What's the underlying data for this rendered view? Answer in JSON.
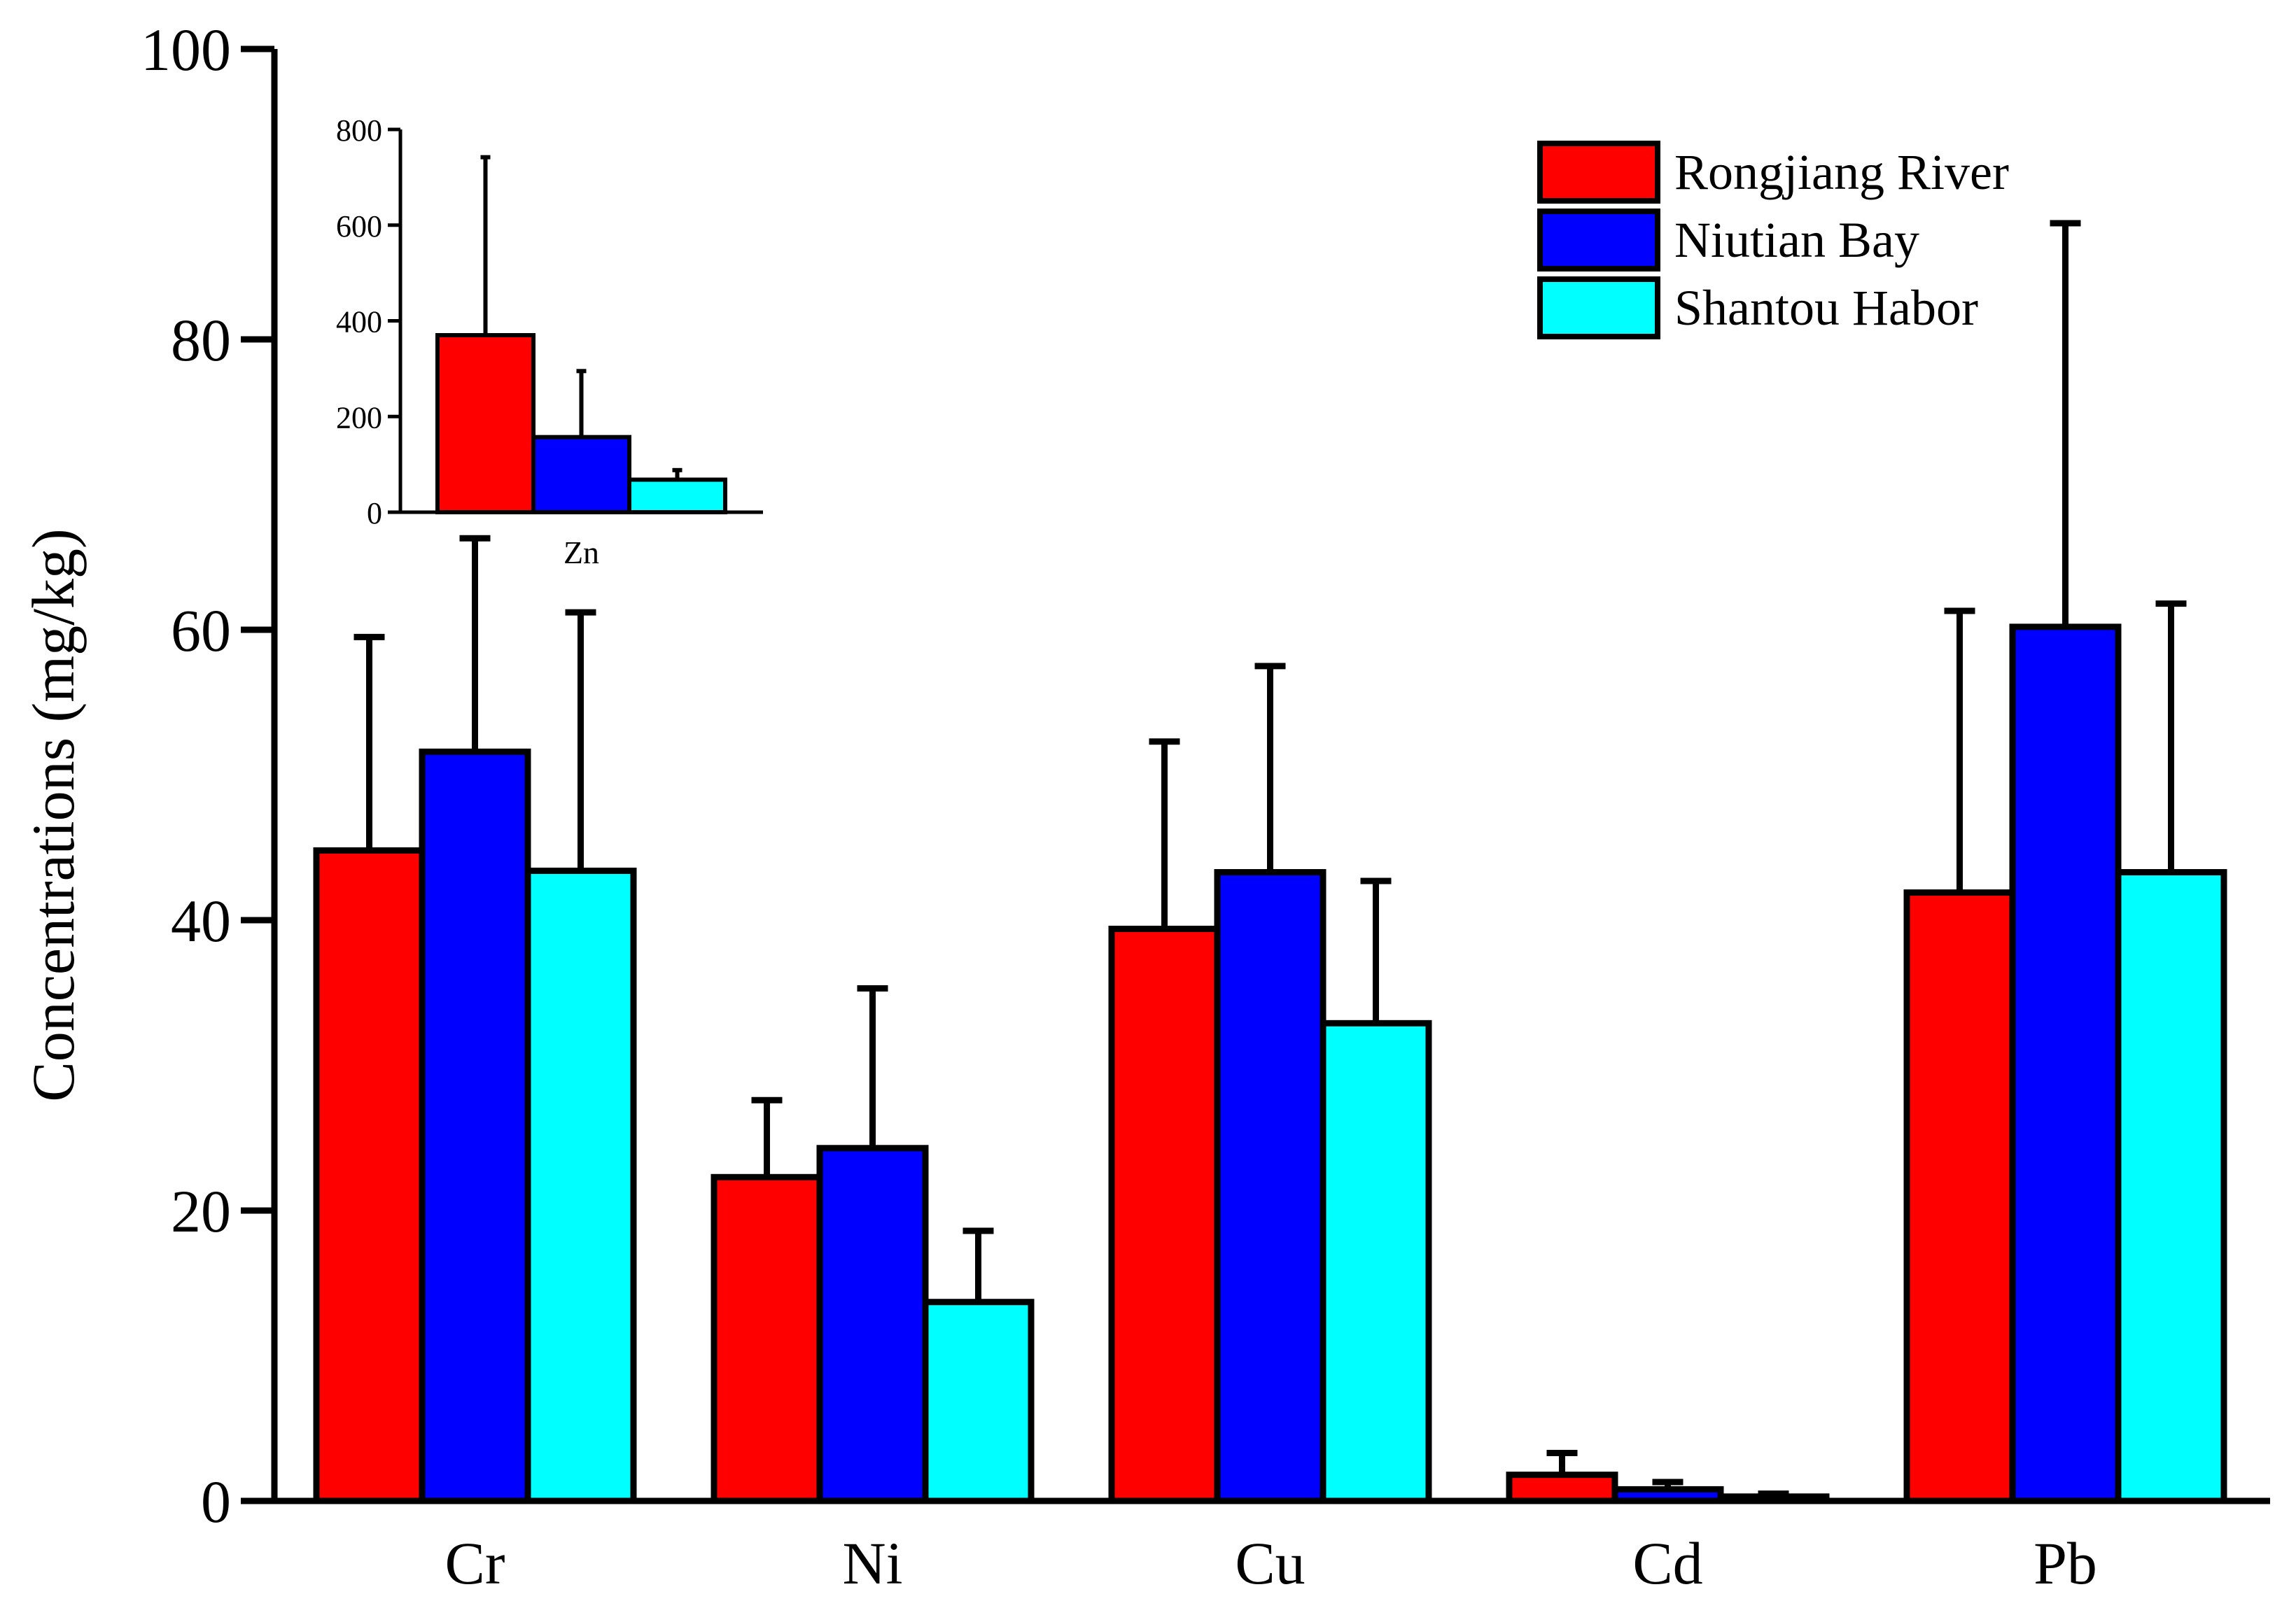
{
  "chart_data": [
    {
      "type": "bar",
      "role": "main",
      "title": "",
      "xlabel": "",
      "ylabel": "Concentrations (mg/kg)",
      "categories": [
        "Cr",
        "Ni",
        "Cu",
        "Cd",
        "Pb"
      ],
      "ylim": [
        0,
        100
      ],
      "yticks": [
        0,
        20,
        40,
        60,
        80,
        100
      ],
      "grid": false,
      "legend_position": "top-right",
      "series": [
        {
          "name": "Rongjiang River",
          "color": "#ff0000",
          "values": [
            44.8,
            22.3,
            39.4,
            1.8,
            41.9
          ],
          "errors": [
            14.7,
            5.3,
            12.9,
            1.5,
            19.4
          ]
        },
        {
          "name": "Niutian Bay",
          "color": "#0000ff",
          "values": [
            51.6,
            24.3,
            43.3,
            0.8,
            60.2
          ],
          "errors": [
            14.7,
            11.0,
            14.2,
            0.5,
            27.8
          ]
        },
        {
          "name": "Shantou Habor",
          "color": "#00ffff",
          "values": [
            43.4,
            13.7,
            32.9,
            0.3,
            43.3
          ],
          "errors": [
            17.8,
            4.9,
            9.8,
            0.2,
            18.5
          ]
        }
      ]
    },
    {
      "type": "bar",
      "role": "inset",
      "title": "",
      "xlabel": "",
      "ylabel": "",
      "categories": [
        "Zn"
      ],
      "ylim": [
        0,
        800
      ],
      "yticks": [
        0,
        200,
        400,
        600,
        800
      ],
      "grid": false,
      "series": [
        {
          "name": "Rongjiang River",
          "color": "#ff0000",
          "values": [
            370
          ],
          "errors": [
            372
          ]
        },
        {
          "name": "Niutian Bay",
          "color": "#0000ff",
          "values": [
            157
          ],
          "errors": [
            138
          ]
        },
        {
          "name": "Shantou Habor",
          "color": "#00ffff",
          "values": [
            68
          ],
          "errors": [
            20
          ]
        }
      ]
    }
  ]
}
